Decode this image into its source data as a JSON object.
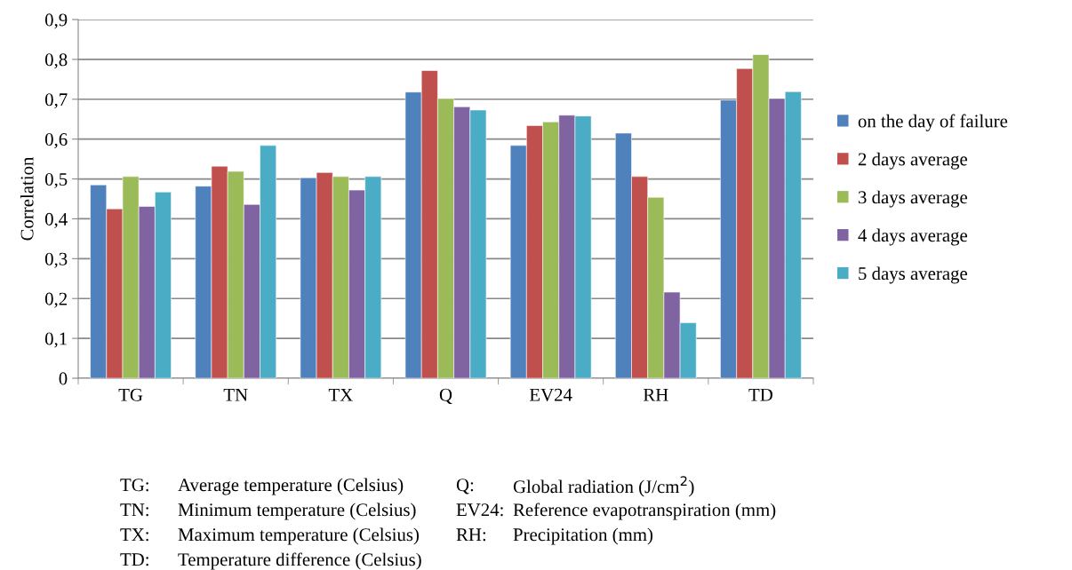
{
  "chart_data": {
    "type": "bar",
    "ylabel": "Correlation",
    "categories": [
      "TG",
      "TN",
      "TX",
      "Q",
      "EV24",
      "RH",
      "TD"
    ],
    "series": [
      {
        "name": "on the day of failure",
        "color": "#4f81bd",
        "values": [
          0.485,
          0.482,
          0.503,
          0.718,
          0.584,
          0.615,
          0.698
        ]
      },
      {
        "name": "2 days average",
        "color": "#c0504d",
        "values": [
          0.425,
          0.532,
          0.516,
          0.772,
          0.634,
          0.506,
          0.777
        ]
      },
      {
        "name": "3 days average",
        "color": "#9bbb59",
        "values": [
          0.506,
          0.519,
          0.506,
          0.702,
          0.643,
          0.454,
          0.812
        ]
      },
      {
        "name": "4 days average",
        "color": "#8064a2",
        "values": [
          0.431,
          0.436,
          0.472,
          0.681,
          0.66,
          0.216,
          0.702
        ]
      },
      {
        "name": "5 days average",
        "color": "#4bacc6",
        "values": [
          0.467,
          0.584,
          0.506,
          0.673,
          0.658,
          0.139,
          0.719
        ]
      }
    ],
    "ylim": [
      0,
      0.9
    ],
    "yticks": [
      0,
      {
        "value": 0.1,
        "label": "0,1"
      },
      {
        "value": 0.2,
        "label": "0,2"
      },
      {
        "value": 0.3,
        "label": "0,3"
      },
      {
        "value": 0.4,
        "label": "0,4"
      },
      {
        "value": 0.5,
        "label": "0,5"
      },
      {
        "value": 0.6,
        "label": "0,6"
      },
      {
        "value": 0.7,
        "label": "0,7"
      },
      {
        "value": 0.8,
        "label": "0,8"
      },
      {
        "value": 0.9,
        "label": "0,9"
      }
    ],
    "grid": "y",
    "legend": "right",
    "annotations": [
      "TG:",
      "Average temperature (Celsius)",
      "Q:",
      "Global radiation (J/cm$^{2}$)",
      "TN:",
      "Minimum temperature (Celsius)",
      "EV24:",
      "Reference evapotranspiration (mm)",
      "TX:",
      "Maximum temperature (Celsius)",
      "RH:",
      "Precipitation (mm)",
      "TD:",
      "Temperature difference (Celsius)"
    ]
  }
}
